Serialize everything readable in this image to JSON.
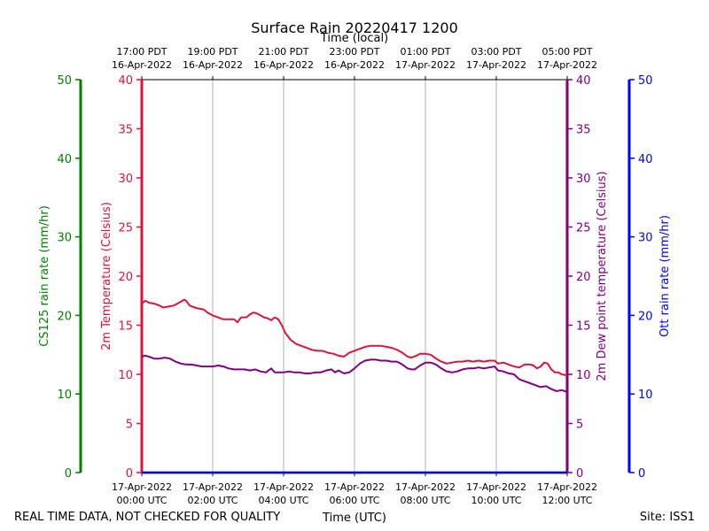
{
  "chart_data": {
    "type": "line",
    "title": "Surface Rain 20220417 1200",
    "footer_left": "REAL TIME DATA, NOT CHECKED FOR QUALITY",
    "footer_right": "Site: ISS1",
    "x_axis_bottom": {
      "label": "Time (UTC)",
      "range_hours": [
        0,
        12
      ],
      "ticks": [
        {
          "hour": 0,
          "line1": "17-Apr-2022",
          "line2": "00:00 UTC"
        },
        {
          "hour": 2,
          "line1": "17-Apr-2022",
          "line2": "02:00 UTC"
        },
        {
          "hour": 4,
          "line1": "17-Apr-2022",
          "line2": "04:00 UTC"
        },
        {
          "hour": 6,
          "line1": "17-Apr-2022",
          "line2": "06:00 UTC"
        },
        {
          "hour": 8,
          "line1": "17-Apr-2022",
          "line2": "08:00 UTC"
        },
        {
          "hour": 10,
          "line1": "17-Apr-2022",
          "line2": "10:00 UTC"
        },
        {
          "hour": 12,
          "line1": "17-Apr-2022",
          "line2": "12:00 UTC"
        }
      ]
    },
    "x_axis_top": {
      "label": "Time (local)",
      "ticks": [
        {
          "hour": 0,
          "line1": "17:00 PDT",
          "line2": "16-Apr-2022"
        },
        {
          "hour": 2,
          "line1": "19:00 PDT",
          "line2": "16-Apr-2022"
        },
        {
          "hour": 4,
          "line1": "21:00 PDT",
          "line2": "16-Apr-2022"
        },
        {
          "hour": 6,
          "line1": "23:00 PDT",
          "line2": "16-Apr-2022"
        },
        {
          "hour": 8,
          "line1": "01:00 PDT",
          "line2": "17-Apr-2022"
        },
        {
          "hour": 10,
          "line1": "03:00 PDT",
          "line2": "17-Apr-2022"
        },
        {
          "hour": 12,
          "line1": "05:00 PDT",
          "line2": "17-Apr-2022"
        }
      ]
    },
    "y_axes": [
      {
        "id": "cs125",
        "label": "CS125 rain rate (mm/hr)",
        "color": "#008000",
        "ylim": [
          0,
          50
        ],
        "ticks": [
          0,
          10,
          20,
          30,
          40,
          50
        ],
        "side": "far-left"
      },
      {
        "id": "temp",
        "label": "2m Temperature (Celsius)",
        "color": "#dc143c",
        "ylim": [
          0,
          40
        ],
        "ticks": [
          0,
          5,
          10,
          15,
          20,
          25,
          30,
          35,
          40
        ],
        "side": "left"
      },
      {
        "id": "dew",
        "label": "2m Dew point temperature (Celsius)",
        "color": "#800080",
        "ylim": [
          0,
          40
        ],
        "ticks": [
          0,
          5,
          10,
          15,
          20,
          25,
          30,
          35,
          40
        ],
        "side": "right"
      },
      {
        "id": "ott",
        "label": "Ott rain rate (mm/hr)",
        "color": "#0000ff",
        "ylim": [
          0,
          50
        ],
        "ticks": [
          0,
          10,
          20,
          30,
          40,
          50
        ],
        "side": "far-right"
      }
    ],
    "grid": "vertical",
    "series": [
      {
        "name": "2m Temperature",
        "axis": "temp",
        "color": "#dc143c",
        "x_hours": [
          0,
          0.1,
          0.2,
          0.35,
          0.5,
          0.6,
          0.75,
          0.9,
          1.0,
          1.1,
          1.2,
          1.25,
          1.35,
          1.5,
          1.6,
          1.75,
          1.85,
          2.0,
          2.15,
          2.3,
          2.45,
          2.55,
          2.6,
          2.7,
          2.8,
          2.95,
          3.05,
          3.15,
          3.25,
          3.35,
          3.45,
          3.55,
          3.65,
          3.75,
          3.85,
          3.95,
          4.05,
          4.2,
          4.35,
          4.5,
          4.65,
          4.8,
          4.95,
          5.1,
          5.25,
          5.4,
          5.55,
          5.7,
          5.85,
          6.0,
          6.15,
          6.3,
          6.45,
          6.6,
          6.75,
          6.9,
          7.05,
          7.2,
          7.35,
          7.5,
          7.6,
          7.75,
          7.85,
          8.0,
          8.15,
          8.3,
          8.45,
          8.6,
          8.75,
          8.9,
          9.05,
          9.2,
          9.35,
          9.5,
          9.65,
          9.8,
          9.95,
          10.05,
          10.2,
          10.35,
          10.5,
          10.65,
          10.8,
          10.95,
          11.05,
          11.15,
          11.25,
          11.35,
          11.45,
          11.55,
          11.65,
          11.75,
          11.85,
          12.0
        ],
        "values": [
          17.2,
          17.5,
          17.3,
          17.2,
          17.0,
          16.8,
          16.9,
          17.0,
          17.2,
          17.4,
          17.6,
          17.5,
          17.0,
          16.8,
          16.7,
          16.6,
          16.3,
          16.0,
          15.8,
          15.6,
          15.6,
          15.6,
          15.6,
          15.3,
          15.8,
          15.8,
          16.1,
          16.3,
          16.2,
          16.0,
          15.8,
          15.7,
          15.5,
          15.8,
          15.6,
          15.0,
          14.2,
          13.5,
          13.1,
          12.9,
          12.7,
          12.5,
          12.4,
          12.4,
          12.2,
          12.1,
          11.9,
          11.8,
          12.2,
          12.4,
          12.6,
          12.8,
          12.9,
          12.9,
          12.9,
          12.8,
          12.7,
          12.5,
          12.2,
          11.8,
          11.7,
          11.9,
          12.1,
          12.1,
          12.0,
          11.6,
          11.3,
          11.1,
          11.2,
          11.3,
          11.3,
          11.4,
          11.3,
          11.4,
          11.3,
          11.4,
          11.4,
          11.1,
          11.2,
          11.0,
          10.8,
          10.7,
          11.0,
          11.0,
          10.9,
          10.6,
          10.8,
          11.2,
          11.1,
          10.5,
          10.2,
          10.2,
          10.0,
          9.9
        ]
      },
      {
        "name": "2m Dew point temperature",
        "axis": "dew",
        "color": "#800080",
        "x_hours": [
          0,
          0.1,
          0.2,
          0.35,
          0.5,
          0.65,
          0.8,
          0.95,
          1.1,
          1.25,
          1.4,
          1.55,
          1.7,
          1.85,
          2.0,
          2.15,
          2.3,
          2.45,
          2.6,
          2.75,
          2.9,
          3.05,
          3.2,
          3.35,
          3.5,
          3.65,
          3.75,
          3.85,
          4.0,
          4.15,
          4.3,
          4.45,
          4.6,
          4.75,
          4.9,
          5.05,
          5.2,
          5.35,
          5.45,
          5.55,
          5.7,
          5.85,
          6.0,
          6.15,
          6.3,
          6.45,
          6.6,
          6.75,
          6.9,
          7.05,
          7.2,
          7.35,
          7.5,
          7.6,
          7.7,
          7.85,
          8.0,
          8.15,
          8.3,
          8.45,
          8.6,
          8.75,
          8.9,
          9.05,
          9.2,
          9.35,
          9.5,
          9.65,
          9.8,
          9.95,
          10.05,
          10.2,
          10.35,
          10.5,
          10.65,
          10.8,
          10.95,
          11.1,
          11.25,
          11.4,
          11.55,
          11.7,
          11.85,
          12.0
        ],
        "values": [
          11.8,
          11.9,
          11.8,
          11.6,
          11.6,
          11.7,
          11.6,
          11.3,
          11.1,
          11.0,
          11.0,
          10.9,
          10.8,
          10.8,
          10.8,
          10.9,
          10.8,
          10.6,
          10.5,
          10.5,
          10.5,
          10.4,
          10.5,
          10.3,
          10.2,
          10.6,
          10.2,
          10.2,
          10.2,
          10.3,
          10.2,
          10.2,
          10.1,
          10.1,
          10.2,
          10.2,
          10.4,
          10.5,
          10.2,
          10.4,
          10.1,
          10.2,
          10.6,
          11.1,
          11.4,
          11.5,
          11.5,
          11.4,
          11.4,
          11.3,
          11.3,
          11.0,
          10.6,
          10.5,
          10.5,
          10.9,
          11.2,
          11.2,
          11.0,
          10.6,
          10.3,
          10.2,
          10.3,
          10.5,
          10.6,
          10.6,
          10.7,
          10.6,
          10.7,
          10.8,
          10.4,
          10.3,
          10.1,
          10.0,
          9.5,
          9.3,
          9.1,
          8.9,
          8.7,
          8.8,
          8.5,
          8.3,
          8.4,
          8.2
        ]
      },
      {
        "name": "CS125 rain rate",
        "axis": "cs125",
        "color": "#008000",
        "x_hours": [
          0,
          12
        ],
        "values": [
          0,
          0
        ]
      },
      {
        "name": "Ott rain rate",
        "axis": "ott",
        "color": "#0000ff",
        "x_hours": [
          0,
          12
        ],
        "values": [
          0,
          0
        ]
      }
    ]
  }
}
